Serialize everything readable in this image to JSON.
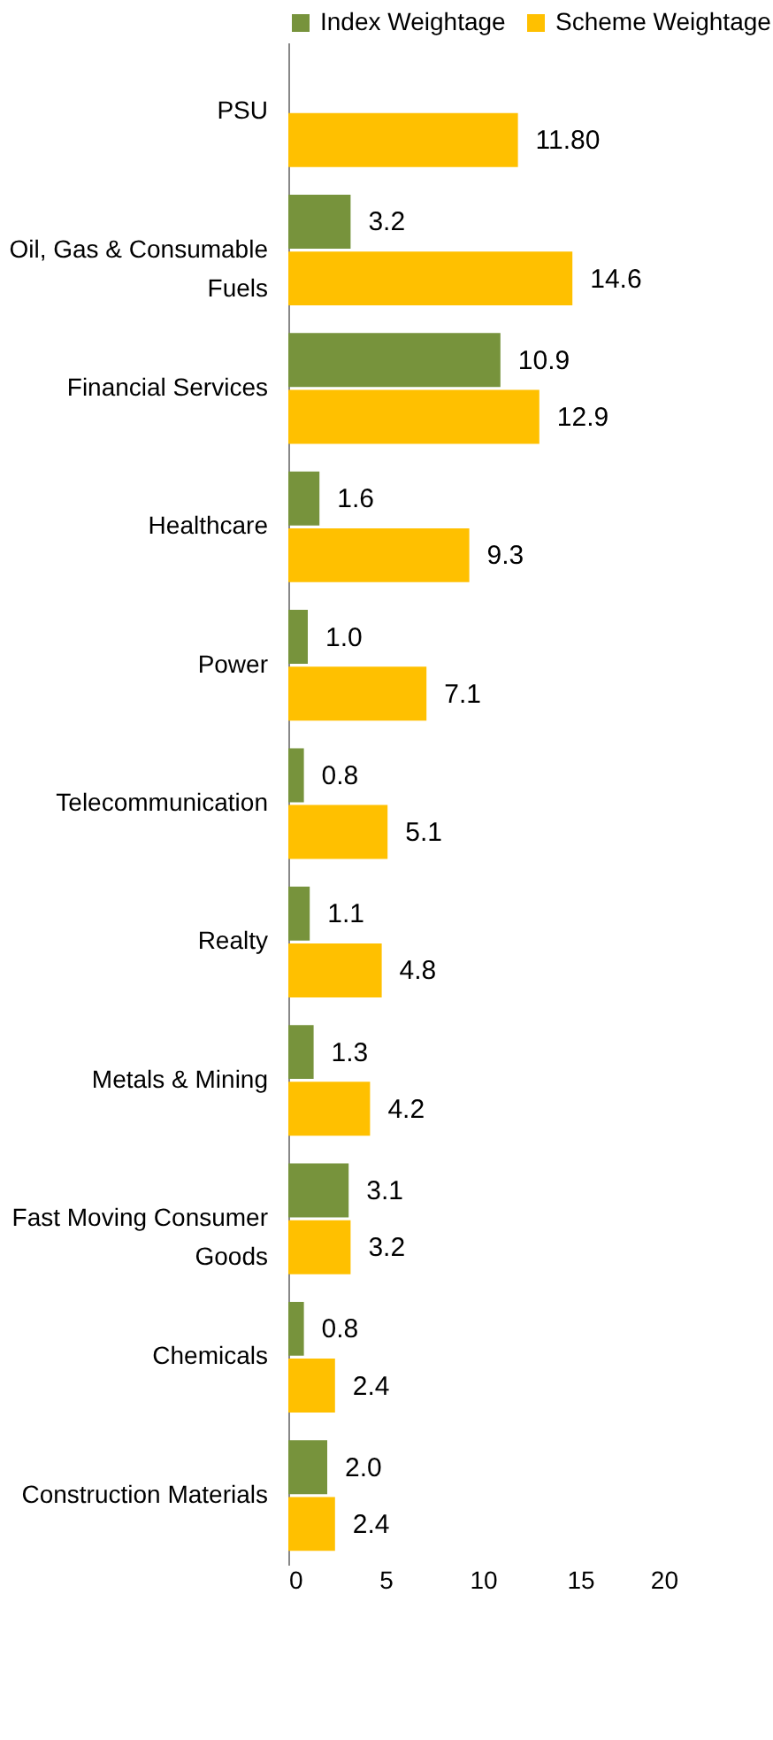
{
  "chart_data": {
    "type": "bar",
    "orientation": "horizontal",
    "categories": [
      "PSU",
      "Oil, Gas & Consumable Fuels",
      "Financial Services",
      "Healthcare",
      "Power",
      "Telecommunication",
      "Realty",
      "Metals & Mining",
      "Fast Moving Consumer Goods",
      "Chemicals",
      "Construction Materials"
    ],
    "series": [
      {
        "name": "Index Weightage",
        "color": "#77933c",
        "values": [
          null,
          3.2,
          10.9,
          1.6,
          1.0,
          0.8,
          1.1,
          1.3,
          3.1,
          0.8,
          2.0
        ],
        "value_labels": [
          null,
          "3.2",
          "10.9",
          "1.6",
          "1.0",
          "0.8",
          "1.1",
          "1.3",
          "3.1",
          "0.8",
          "2.0"
        ]
      },
      {
        "name": "Scheme Weightage",
        "color": "#ffc000",
        "values": [
          11.8,
          14.6,
          12.9,
          9.3,
          7.1,
          5.1,
          4.8,
          4.2,
          3.2,
          2.4,
          2.4
        ],
        "value_labels": [
          "11.80",
          "14.6",
          "12.9",
          "9.3",
          "7.1",
          "5.1",
          "4.8",
          "4.2",
          "3.2",
          "2.4",
          "2.4"
        ]
      }
    ],
    "xlim": [
      0,
      20
    ],
    "xticks": [
      0,
      5,
      10,
      15,
      20
    ],
    "grid": false,
    "legend": "top"
  }
}
